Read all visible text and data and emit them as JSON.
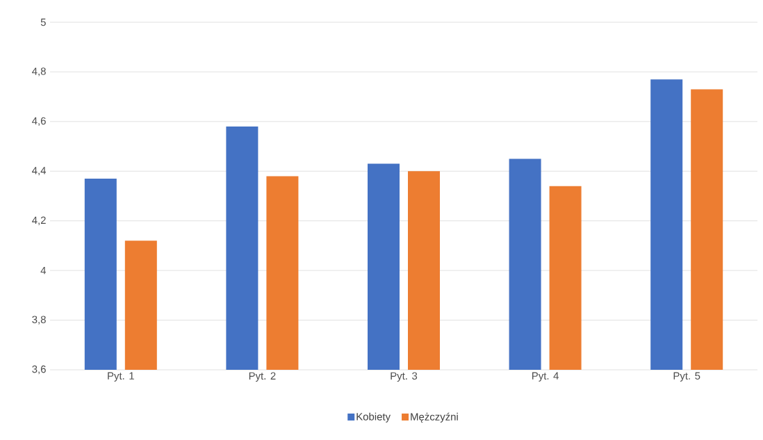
{
  "chart_data": {
    "type": "bar",
    "categories": [
      "Pyt. 1",
      "Pyt. 2",
      "Pyt. 3",
      "Pyt. 4",
      "Pyt. 5"
    ],
    "series": [
      {
        "name": "Kobiety",
        "color": "#4472c4",
        "values": [
          4.37,
          4.58,
          4.43,
          4.45,
          4.77
        ]
      },
      {
        "name": "Mężczyźni",
        "color": "#ed7d31",
        "values": [
          4.12,
          4.38,
          4.4,
          4.34,
          4.73
        ]
      }
    ],
    "ylim": [
      3.6,
      5
    ],
    "yticks": [
      {
        "value": 3.6,
        "label": "3,6"
      },
      {
        "value": 3.8,
        "label": "3,8"
      },
      {
        "value": 4,
        "label": "4"
      },
      {
        "value": 4.2,
        "label": "4,2"
      },
      {
        "value": 4.4,
        "label": "4,4"
      },
      {
        "value": 4.6,
        "label": "4,6"
      },
      {
        "value": 4.8,
        "label": "4,8"
      },
      {
        "value": 5,
        "label": "5"
      }
    ],
    "grid": "y",
    "legend": "bottom"
  }
}
